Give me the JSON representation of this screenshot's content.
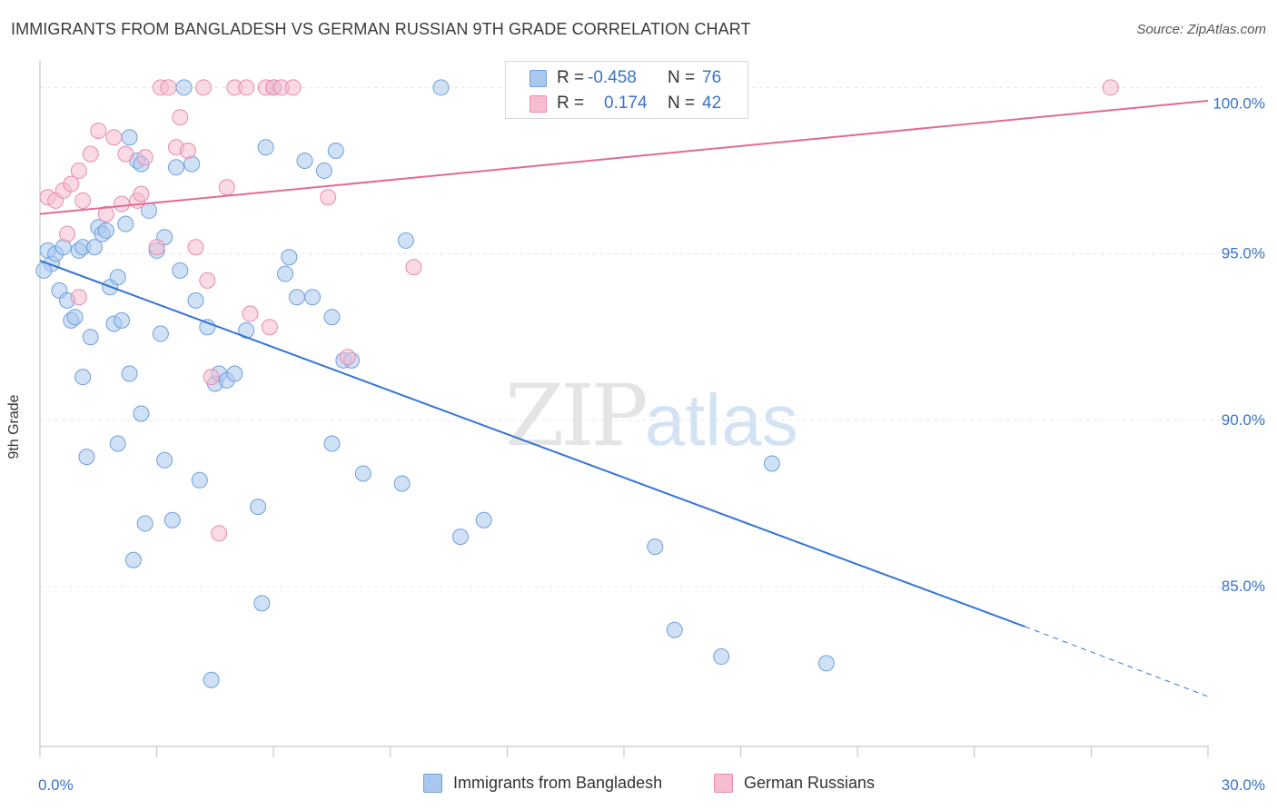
{
  "header": {
    "title": "IMMIGRANTS FROM BANGLADESH VS GERMAN RUSSIAN 9TH GRADE CORRELATION CHART",
    "source": "Source: ZipAtlas.com"
  },
  "watermark": {
    "zip": "ZIP",
    "atlas": "atlas"
  },
  "legend": {
    "rows": [
      {
        "r_label": "R =",
        "r_value": "-0.458",
        "n_label": "N =",
        "n_value": "76"
      },
      {
        "r_label": "R =",
        "r_value": "0.174",
        "n_label": "N =",
        "n_value": "42"
      }
    ]
  },
  "bottom_legend": {
    "series1": "Immigrants from Bangladesh",
    "series2": "German Russians"
  },
  "colors": {
    "blue_fill": "#aac8ef",
    "blue_stroke": "#6f9fdc",
    "blue_line": "#3574d4",
    "pink_fill": "#f6bccf",
    "pink_stroke": "#e98aab",
    "pink_line": "#e26a93",
    "axis_text": "#3a74c7"
  },
  "chart_data": {
    "type": "scatter",
    "title": "IMMIGRANTS FROM BANGLADESH VS GERMAN RUSSIAN 9TH GRADE CORRELATION CHART",
    "xlabel": "",
    "ylabel": "9th Grade",
    "xlim": [
      0,
      30
    ],
    "ylim": [
      80.2,
      100.8
    ],
    "x_tick_labels": [
      "0.0%",
      "30.0%"
    ],
    "y_ticks": [
      85,
      90,
      95,
      100
    ],
    "y_tick_labels": [
      "85.0%",
      "90.0%",
      "95.0%",
      "100.0%"
    ],
    "grid": true,
    "legend_position": "top-center",
    "series": [
      {
        "name": "Immigrants from Bangladesh",
        "color": "#aac8ef",
        "r": -0.458,
        "n": 76,
        "trend": {
          "x0": 0,
          "y0": 94.8,
          "x1": 25.3,
          "y1": 83.8,
          "dashed_to_x": 30,
          "dashed_to_y": 81.7
        },
        "points": [
          [
            0.2,
            95.1
          ],
          [
            0.3,
            94.7
          ],
          [
            0.4,
            95.0
          ],
          [
            0.5,
            93.9
          ],
          [
            0.6,
            95.2
          ],
          [
            0.7,
            93.6
          ],
          [
            0.8,
            93.0
          ],
          [
            0.9,
            93.1
          ],
          [
            1.0,
            95.1
          ],
          [
            1.1,
            95.2
          ],
          [
            1.3,
            92.5
          ],
          [
            1.4,
            95.2
          ],
          [
            1.5,
            95.8
          ],
          [
            1.6,
            95.6
          ],
          [
            1.7,
            95.7
          ],
          [
            1.8,
            94.0
          ],
          [
            1.9,
            92.9
          ],
          [
            2.0,
            94.3
          ],
          [
            2.1,
            93.0
          ],
          [
            2.2,
            95.9
          ],
          [
            2.3,
            98.5
          ],
          [
            2.5,
            97.8
          ],
          [
            2.6,
            97.7
          ],
          [
            2.8,
            96.3
          ],
          [
            3.0,
            95.1
          ],
          [
            3.1,
            92.6
          ],
          [
            3.2,
            95.5
          ],
          [
            3.5,
            97.6
          ],
          [
            3.6,
            94.5
          ],
          [
            3.7,
            100.0
          ],
          [
            3.9,
            97.7
          ],
          [
            4.0,
            93.6
          ],
          [
            4.3,
            92.8
          ],
          [
            4.5,
            91.1
          ],
          [
            4.6,
            91.4
          ],
          [
            4.8,
            91.2
          ],
          [
            5.0,
            91.4
          ],
          [
            5.3,
            92.7
          ],
          [
            5.8,
            98.2
          ],
          [
            6.0,
            100.0
          ],
          [
            6.3,
            94.4
          ],
          [
            6.4,
            94.9
          ],
          [
            6.6,
            93.7
          ],
          [
            6.8,
            97.8
          ],
          [
            7.0,
            93.7
          ],
          [
            7.3,
            97.5
          ],
          [
            7.5,
            93.1
          ],
          [
            7.6,
            98.1
          ],
          [
            7.8,
            91.8
          ],
          [
            8.0,
            91.8
          ],
          [
            1.1,
            91.3
          ],
          [
            1.2,
            88.9
          ],
          [
            2.0,
            89.3
          ],
          [
            2.3,
            91.4
          ],
          [
            2.6,
            90.2
          ],
          [
            3.2,
            88.8
          ],
          [
            3.4,
            87.0
          ],
          [
            4.1,
            88.2
          ],
          [
            5.6,
            87.4
          ],
          [
            5.7,
            84.5
          ],
          [
            2.4,
            85.8
          ],
          [
            2.7,
            86.9
          ],
          [
            4.4,
            82.2
          ],
          [
            7.5,
            89.3
          ],
          [
            8.3,
            88.4
          ],
          [
            9.3,
            88.1
          ],
          [
            9.4,
            95.4
          ],
          [
            10.3,
            100.0
          ],
          [
            10.8,
            86.5
          ],
          [
            11.4,
            87.0
          ],
          [
            15.8,
            86.2
          ],
          [
            16.3,
            83.7
          ],
          [
            17.5,
            82.9
          ],
          [
            18.8,
            88.7
          ],
          [
            20.2,
            82.7
          ],
          [
            0.1,
            94.5
          ]
        ]
      },
      {
        "name": "German Russians",
        "color": "#f6bccf",
        "r": 0.174,
        "n": 42,
        "trend": {
          "x0": 0,
          "y0": 96.2,
          "x1": 30,
          "y1": 99.6
        },
        "points": [
          [
            0.2,
            96.7
          ],
          [
            0.4,
            96.6
          ],
          [
            0.6,
            96.9
          ],
          [
            0.8,
            97.1
          ],
          [
            1.0,
            97.5
          ],
          [
            1.1,
            96.6
          ],
          [
            1.3,
            98.0
          ],
          [
            1.5,
            98.7
          ],
          [
            1.7,
            96.2
          ],
          [
            1.9,
            98.5
          ],
          [
            2.1,
            96.5
          ],
          [
            2.2,
            98.0
          ],
          [
            2.5,
            96.6
          ],
          [
            2.6,
            96.8
          ],
          [
            2.7,
            97.9
          ],
          [
            3.0,
            95.2
          ],
          [
            3.1,
            100.0
          ],
          [
            3.3,
            100.0
          ],
          [
            3.5,
            98.2
          ],
          [
            3.6,
            99.1
          ],
          [
            3.8,
            98.1
          ],
          [
            4.0,
            95.2
          ],
          [
            4.2,
            100.0
          ],
          [
            4.3,
            94.2
          ],
          [
            4.8,
            97.0
          ],
          [
            5.0,
            100.0
          ],
          [
            5.3,
            100.0
          ],
          [
            5.4,
            93.2
          ],
          [
            5.8,
            100.0
          ],
          [
            5.9,
            92.8
          ],
          [
            6.0,
            100.0
          ],
          [
            6.2,
            100.0
          ],
          [
            6.5,
            100.0
          ],
          [
            7.4,
            96.7
          ],
          [
            7.9,
            91.9
          ],
          [
            9.6,
            94.6
          ],
          [
            12.8,
            100.0
          ],
          [
            27.5,
            100.0
          ],
          [
            0.7,
            95.6
          ],
          [
            1.0,
            93.7
          ],
          [
            4.4,
            91.3
          ],
          [
            4.6,
            86.6
          ]
        ]
      }
    ]
  }
}
